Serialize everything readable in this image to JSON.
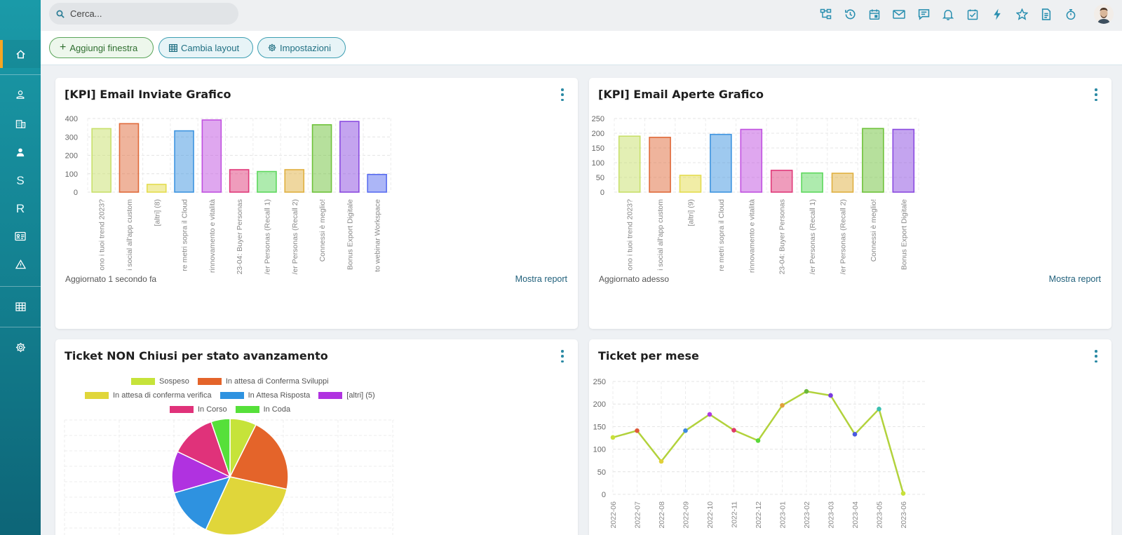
{
  "search": {
    "placeholder": "Cerca..."
  },
  "sidebar": {
    "items": [
      {
        "icon": "home-icon"
      },
      {
        "icon": "contact-icon"
      },
      {
        "icon": "building-icon"
      },
      {
        "icon": "user-icon"
      },
      {
        "letter": "S"
      },
      {
        "letter": "R"
      },
      {
        "icon": "id-card-icon"
      },
      {
        "icon": "warning-icon"
      },
      {
        "icon": "grid-icon"
      },
      {
        "icon": "gear-icon"
      }
    ]
  },
  "topbar": {
    "icons": [
      "sitemap-icon",
      "history-icon",
      "calendar-icon",
      "mail-icon",
      "chat-icon",
      "bell-icon",
      "checkbox-icon",
      "bolt-icon",
      "star-icon",
      "document-icon",
      "stopwatch-icon"
    ]
  },
  "actions": {
    "add_window": "Aggiungi finestra",
    "change_layout": "Cambia layout",
    "settings": "Impostazioni"
  },
  "cards": {
    "email_sent": {
      "title": "[KPI] Email Inviate Grafico",
      "updated": "Aggiornato 1 secondo fa",
      "report": "Mostra report"
    },
    "email_opened": {
      "title": "[KPI] Email Aperte Grafico",
      "updated": "Aggiornato adesso",
      "report": "Mostra report"
    },
    "tickets_open": {
      "title": "Ticket NON Chiusi per stato avanzamento"
    },
    "tickets_month": {
      "title": "Ticket per mese"
    }
  },
  "chart_data": [
    {
      "type": "bar",
      "title": "[KPI] Email Inviate Grafico",
      "categories": [
        "ono i tuoi trend 2023?",
        "i social all'app custom",
        "[altri] (8)",
        "re metri sopra il Cloud",
        "rinnovamento e vitalità",
        "23-04: Buyer Personas",
        "/er Personas (Recall 1)",
        "/er Personas (Recall 2)",
        "Connessi è meglio!",
        "Bonus Export Digitale",
        "to webinar Workspace"
      ],
      "values": [
        345,
        372,
        42,
        333,
        392,
        122,
        112,
        122,
        366,
        384,
        96
      ],
      "colors": [
        "#c8e06a",
        "#e06a3a",
        "#e4dc4e",
        "#3d94e0",
        "#c050e0",
        "#e03a7a",
        "#5ed85e",
        "#e0b040",
        "#6ec23a",
        "#8a4ae0",
        "#5a6ef0"
      ],
      "ylim": [
        0,
        400
      ],
      "yticks": [
        0,
        100,
        200,
        300,
        400
      ]
    },
    {
      "type": "bar",
      "title": "[KPI] Email Aperte Grafico",
      "categories": [
        "ono i tuoi trend 2023?",
        "i social all'app custom",
        "[altri] (9)",
        "re metri sopra il Cloud",
        "rinnovamento e vitalità",
        "23-04: Buyer Personas",
        "/er Personas (Recall 1)",
        "/er Personas (Recall 2)",
        "Connessi è meglio!",
        "Bonus Export Digitale"
      ],
      "values": [
        190,
        186,
        57,
        196,
        213,
        74,
        65,
        64,
        216,
        213
      ],
      "colors": [
        "#c8e06a",
        "#e06a3a",
        "#e4dc4e",
        "#3d94e0",
        "#c050e0",
        "#e03a7a",
        "#5ed85e",
        "#e0b040",
        "#6ec23a",
        "#8a4ae0"
      ],
      "ylim": [
        0,
        250
      ],
      "yticks": [
        0,
        50,
        100,
        150,
        200,
        250
      ]
    },
    {
      "type": "pie",
      "title": "Ticket NON Chiusi per stato avanzamento",
      "labels": [
        "Sospeso",
        "In attesa di Conferma Sviluppi",
        "In attesa di conferma verifica",
        "In Attesa Risposta",
        "[altri] (5)",
        "In Corso",
        "In Coda"
      ],
      "values": [
        7,
        20,
        27,
        13,
        11,
        12,
        5
      ],
      "colors": [
        "#c6e33a",
        "#e4642a",
        "#e0d63a",
        "#2e92e0",
        "#b032e0",
        "#e0327a",
        "#56e03a"
      ]
    },
    {
      "type": "line",
      "title": "Ticket per mese",
      "x": [
        "2022-06",
        "2022-07",
        "2022-08",
        "2022-09",
        "2022-10",
        "2022-11",
        "2022-12",
        "2023-01",
        "2023-02",
        "2023-03",
        "2023-04",
        "2023-05",
        "2023-06"
      ],
      "values": [
        126,
        141,
        73,
        141,
        177,
        142,
        119,
        197,
        228,
        219,
        133,
        189,
        2
      ],
      "point_colors": [
        "#c8e03a",
        "#e05a3a",
        "#e0d03a",
        "#3d8ae0",
        "#b03ae0",
        "#e03a6a",
        "#5ad83a",
        "#e0a03a",
        "#6ab83a",
        "#7a3ae0",
        "#4a5ae0",
        "#3ac0b0",
        "#c8e03a"
      ],
      "line_color": "#b2d23c",
      "ylim": [
        0,
        250
      ],
      "yticks": [
        0,
        50,
        100,
        150,
        200,
        250
      ]
    }
  ]
}
